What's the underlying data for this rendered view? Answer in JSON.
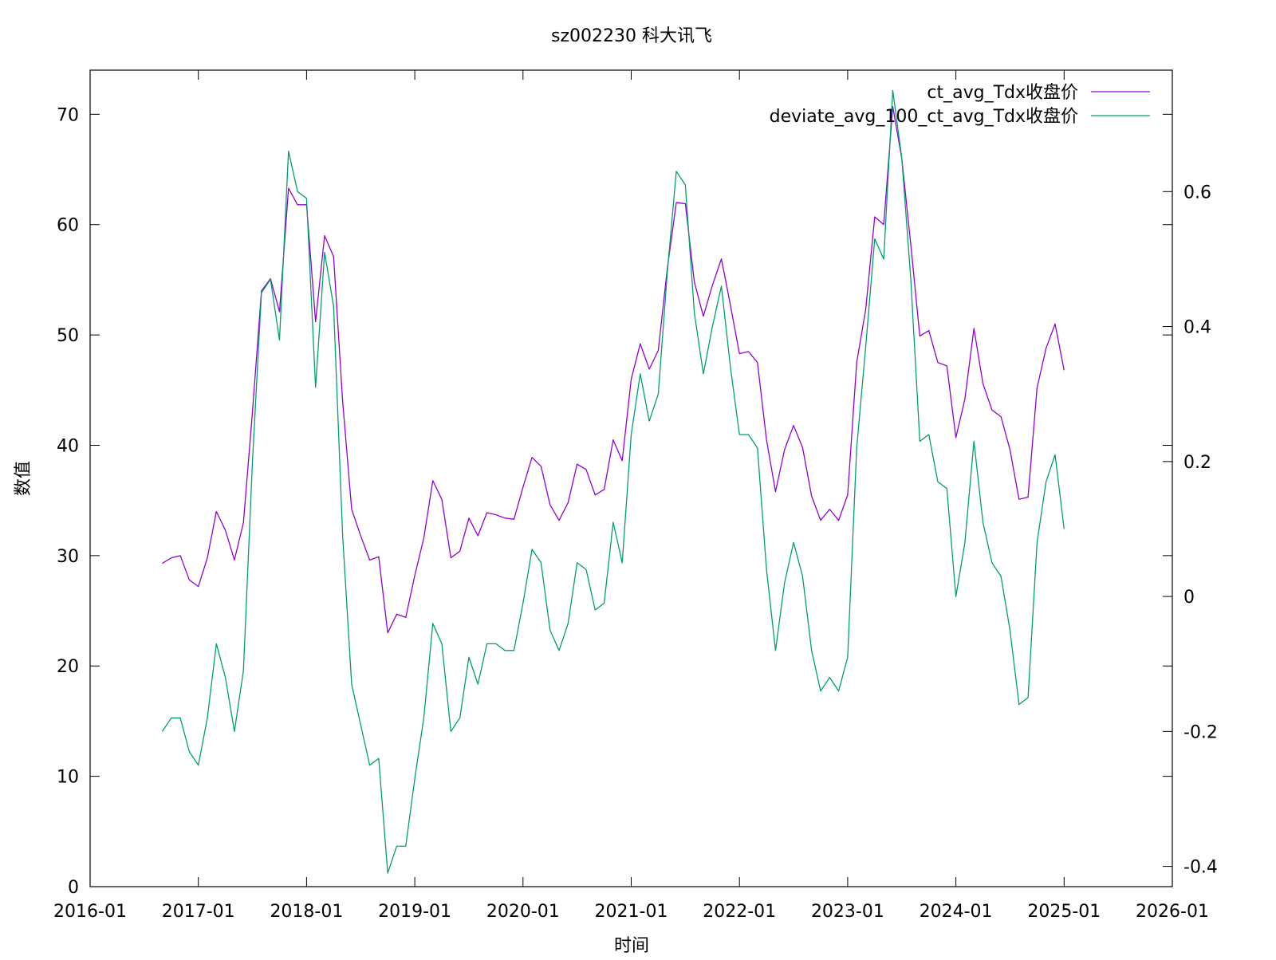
{
  "chart_data": {
    "type": "line",
    "title": "sz002230 科大讯飞",
    "xlabel": "时间",
    "ylabel": "数值",
    "xlim": [
      "2016-01",
      "2026-01"
    ],
    "ylim": [
      0,
      74
    ],
    "y2lim": [
      -0.43,
      0.78
    ],
    "x_ticks": [
      "2016-01",
      "2017-01",
      "2018-01",
      "2019-01",
      "2020-01",
      "2021-01",
      "2022-01",
      "2023-01",
      "2024-01",
      "2025-01",
      "2026-01"
    ],
    "y_ticks": [
      0,
      10,
      20,
      30,
      40,
      50,
      60,
      70
    ],
    "y2_ticks": [
      -0.4,
      -0.2,
      0,
      0.2,
      0.4,
      0.6
    ],
    "y2_tick_labels": [
      "-0.4",
      "-0.2",
      "0",
      "0.2",
      "0.4",
      "0.6"
    ],
    "legend_position": "top-right",
    "grid": false,
    "x": [
      "2016-09",
      "2016-10",
      "2016-11",
      "2016-12",
      "2017-01",
      "2017-02",
      "2017-03",
      "2017-04",
      "2017-05",
      "2017-06",
      "2017-07",
      "2017-08",
      "2017-09",
      "2017-10",
      "2017-11",
      "2017-12",
      "2018-01",
      "2018-02",
      "2018-03",
      "2018-04",
      "2018-05",
      "2018-06",
      "2018-07",
      "2018-08",
      "2018-09",
      "2018-10",
      "2018-11",
      "2018-12",
      "2019-01",
      "2019-02",
      "2019-03",
      "2019-04",
      "2019-05",
      "2019-06",
      "2019-07",
      "2019-08",
      "2019-09",
      "2019-10",
      "2019-11",
      "2019-12",
      "2020-01",
      "2020-02",
      "2020-03",
      "2020-04",
      "2020-05",
      "2020-06",
      "2020-07",
      "2020-08",
      "2020-09",
      "2020-10",
      "2020-11",
      "2020-12",
      "2021-01",
      "2021-02",
      "2021-03",
      "2021-04",
      "2021-05",
      "2021-06",
      "2021-07",
      "2021-08",
      "2021-09",
      "2021-10",
      "2021-11",
      "2021-12",
      "2022-01",
      "2022-02",
      "2022-03",
      "2022-04",
      "2022-05",
      "2022-06",
      "2022-07",
      "2022-08",
      "2022-09",
      "2022-10",
      "2022-11",
      "2022-12",
      "2023-01",
      "2023-02",
      "2023-03",
      "2023-04",
      "2023-05",
      "2023-06",
      "2023-07",
      "2023-08",
      "2023-09",
      "2023-10",
      "2023-11",
      "2023-12",
      "2024-01",
      "2024-02",
      "2024-03",
      "2024-04",
      "2024-05",
      "2024-06",
      "2024-07",
      "2024-08",
      "2024-09",
      "2024-10",
      "2024-11",
      "2024-12",
      "2025-01"
    ],
    "series": [
      {
        "name": "ct_avg_Tdx收盘价",
        "axis": "left",
        "color": "#9400d3",
        "values": [
          29.3,
          29.8,
          30.0,
          27.8,
          27.2,
          29.8,
          34.0,
          32.3,
          29.6,
          33.0,
          43.0,
          54.0,
          55.1,
          52.1,
          63.3,
          61.8,
          61.8,
          51.2,
          59.0,
          57.1,
          44.0,
          34.2,
          31.8,
          29.6,
          29.9,
          23.0,
          24.7,
          24.4,
          28.2,
          31.6,
          36.8,
          35.1,
          29.8,
          30.4,
          33.4,
          31.8,
          33.9,
          33.7,
          33.4,
          33.3,
          36.2,
          38.9,
          38.1,
          34.6,
          33.2,
          34.8,
          38.3,
          37.8,
          35.5,
          36.0,
          40.5,
          38.6,
          46.0,
          49.2,
          46.9,
          48.6,
          56.0,
          62.0,
          61.9,
          54.8,
          51.7,
          54.5,
          56.9,
          52.7,
          48.3,
          48.5,
          47.5,
          40.5,
          35.8,
          39.6,
          41.8,
          39.8,
          35.4,
          33.2,
          34.2,
          33.2,
          35.5,
          47.5,
          52.3,
          60.7,
          60.0,
          70.7,
          66.0,
          58.2,
          49.9,
          50.4,
          47.5,
          47.2,
          40.7,
          44.2,
          50.6,
          45.6,
          43.2,
          42.6,
          39.6,
          35.1,
          35.3,
          45.2,
          48.8,
          51.0,
          46.8
        ]
      },
      {
        "name": "deviate_avg_100_ct_avg_Tdx收盘价",
        "axis": "right",
        "color": "#009e73",
        "values": [
          -0.2,
          -0.18,
          -0.18,
          -0.23,
          -0.25,
          -0.18,
          -0.07,
          -0.12,
          -0.2,
          -0.11,
          0.2,
          0.45,
          0.47,
          0.38,
          0.66,
          0.6,
          0.59,
          0.31,
          0.51,
          0.43,
          0.09,
          -0.13,
          -0.19,
          -0.25,
          -0.24,
          -0.41,
          -0.37,
          -0.37,
          -0.27,
          -0.18,
          -0.04,
          -0.07,
          -0.2,
          -0.18,
          -0.09,
          -0.13,
          -0.07,
          -0.07,
          -0.08,
          -0.08,
          -0.01,
          0.07,
          0.05,
          -0.05,
          -0.08,
          -0.04,
          0.05,
          0.04,
          -0.02,
          -0.01,
          0.11,
          0.05,
          0.24,
          0.33,
          0.26,
          0.3,
          0.48,
          0.63,
          0.61,
          0.42,
          0.33,
          0.4,
          0.46,
          0.34,
          0.24,
          0.24,
          0.22,
          0.04,
          -0.08,
          0.02,
          0.08,
          0.03,
          -0.08,
          -0.14,
          -0.12,
          -0.14,
          -0.09,
          0.22,
          0.37,
          0.53,
          0.5,
          0.75,
          0.65,
          0.47,
          0.23,
          0.24,
          0.17,
          0.16,
          0.0,
          0.08,
          0.23,
          0.11,
          0.05,
          0.03,
          -0.05,
          -0.16,
          -0.15,
          0.08,
          0.17,
          0.21,
          0.1
        ]
      }
    ]
  }
}
